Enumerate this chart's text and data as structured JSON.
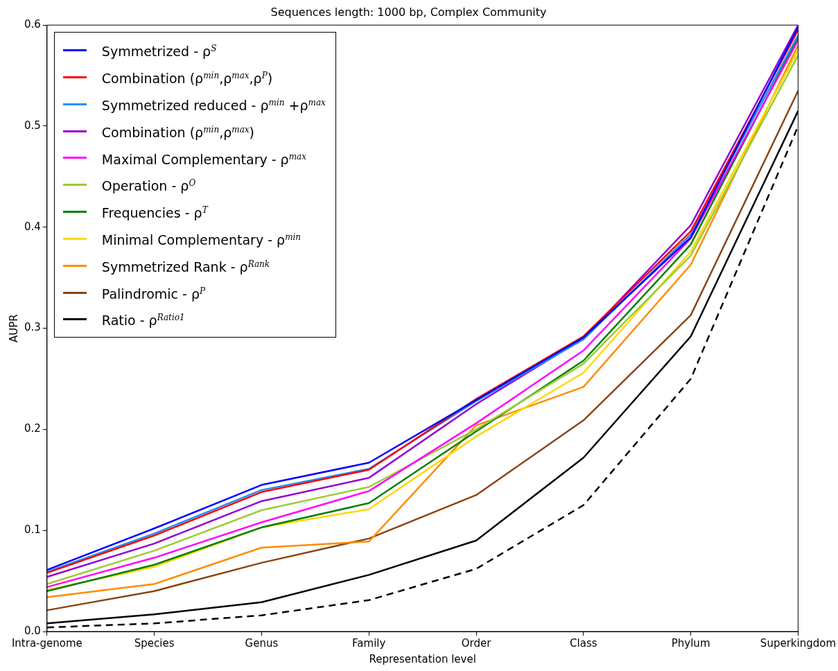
{
  "chart_data": {
    "type": "line",
    "title": "Sequences length: 1000 bp, Complex Community",
    "xlabel": "Representation level",
    "ylabel": "AUPR",
    "categories": [
      "Intra-genome",
      "Species",
      "Genus",
      "Family",
      "Order",
      "Class",
      "Phylum",
      "Superkingdom"
    ],
    "ylim": [
      0,
      0.6
    ],
    "yticks": [
      {
        "value": 0,
        "label": "0.0"
      },
      {
        "value": 0.1,
        "label": "0.1"
      },
      {
        "value": 0.2,
        "label": "0.2"
      },
      {
        "value": 0.3,
        "label": "0.3"
      },
      {
        "value": 0.4,
        "label": "0.4"
      },
      {
        "value": 0.5,
        "label": "0.5"
      },
      {
        "value": 0.6,
        "label": "0.6"
      }
    ],
    "grid": false,
    "legend": "top left",
    "marker": "none",
    "series": [
      {
        "name": "Symmetrized - ρ$^{S}$",
        "color": "#0000ff",
        "values": [
          0.061,
          0.102,
          0.145,
          0.167,
          0.229,
          0.291,
          0.39,
          0.598
        ]
      },
      {
        "name": "Combination (ρ$^{min}$,ρ$^{max}$,ρ$^{P}$)",
        "color": "#ff0000",
        "values": [
          0.058,
          0.095,
          0.138,
          0.16,
          0.23,
          0.292,
          0.396,
          0.595
        ]
      },
      {
        "name": "Symmetrized reduced - ρ$^{min}$ +ρ$^{max}$",
        "color": "#1e90ff",
        "values": [
          0.059,
          0.097,
          0.14,
          0.161,
          0.228,
          0.289,
          0.393,
          0.59
        ]
      },
      {
        "name": "Combination (ρ$^{min}$,ρ$^{max}$)",
        "color": "#9400d3",
        "values": [
          0.054,
          0.087,
          0.129,
          0.152,
          0.225,
          0.29,
          0.402,
          0.6
        ]
      },
      {
        "name": "Maximal Complementary - ρ$^{max}$",
        "color": "#ff00ff",
        "values": [
          0.044,
          0.073,
          0.108,
          0.139,
          0.206,
          0.278,
          0.389,
          0.585
        ]
      },
      {
        "name": "Operation - ρ$^{O}$",
        "color": "#9acd32",
        "values": [
          0.047,
          0.08,
          0.12,
          0.143,
          0.2,
          0.265,
          0.372,
          0.57
        ]
      },
      {
        "name": "Frequencies - ρ$^{T}$",
        "color": "#008000",
        "values": [
          0.04,
          0.066,
          0.103,
          0.127,
          0.198,
          0.268,
          0.383,
          0.588
        ]
      },
      {
        "name": "Minimal Complementary - ρ$^{min}$",
        "color": "#ffd700",
        "values": [
          0.041,
          0.064,
          0.103,
          0.121,
          0.193,
          0.256,
          0.376,
          0.575
        ]
      },
      {
        "name": "Symmetrized Rank - ρ$^{Rank}$",
        "color": "#ff8c00",
        "values": [
          0.034,
          0.047,
          0.083,
          0.089,
          0.204,
          0.242,
          0.363,
          0.58
        ]
      },
      {
        "name": "Palindromic - ρ$^{P}$",
        "color": "#8b4513",
        "values": [
          0.021,
          0.04,
          0.068,
          0.092,
          0.135,
          0.209,
          0.313,
          0.535
        ]
      },
      {
        "name": "Ratio - ρ$^{Ratio1}$",
        "color": "#000000",
        "values": [
          0.008,
          0.017,
          0.029,
          0.056,
          0.09,
          0.172,
          0.292,
          0.515
        ]
      },
      {
        "color": "#000000",
        "line_style": "dashed",
        "values": [
          0.004,
          0.008,
          0.016,
          0.031,
          0.062,
          0.125,
          0.25,
          0.5
        ]
      }
    ]
  }
}
